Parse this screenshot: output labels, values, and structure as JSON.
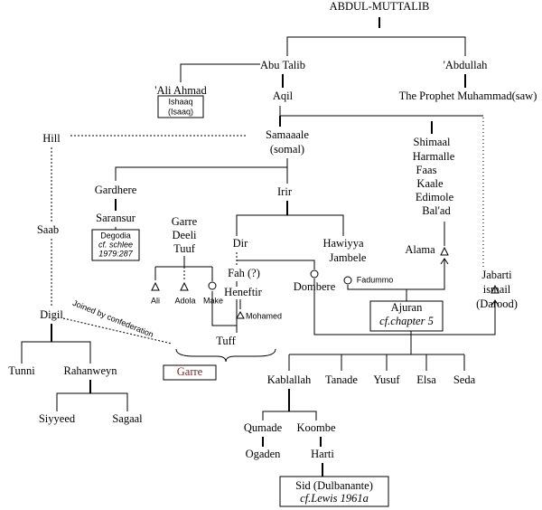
{
  "labels": [
    "ABDUL-MUTTALIB",
    "Abu Talib",
    "'Abdullah",
    "'Ali Ahmad",
    "Ishaaq",
    "(Isaaq)",
    "Aqil",
    "The Prophet Muhammad(saw)",
    "Hill",
    "Samaaale",
    "(somal)",
    "Shimaal",
    "Harmalle",
    "Faas",
    "Kaale",
    "Edimole",
    "Bal'ad",
    "Gardhere",
    "Irir",
    "Saransur",
    "Degodia",
    "cf. schlee",
    "1979:287",
    "Garre",
    "Deeli",
    "Tuuf",
    "Saab",
    "Dir",
    "Hawiyya",
    "Jambele",
    "Alama",
    "Fah (?)",
    "Dombere",
    "Fadummo",
    "Jabarti",
    "ismail",
    "(Darood)",
    "Heneftir",
    "Ali",
    "Adola",
    "Make",
    "Mohamed",
    "Ajuran",
    "cf.chapter 5",
    "Digil",
    "Joined by confederation",
    "Tuff",
    "Garre",
    "Tunni",
    "Rahanweyn",
    "Kablallah",
    "Tanade",
    "Yusuf",
    "Elsa",
    "Seda",
    "Siyyeed",
    "Sagaal",
    "Qumade",
    "Koombe",
    "Ogaden",
    "Harti",
    "Sid (Dulbanante)",
    "cf.Lewis 1961a"
  ]
}
